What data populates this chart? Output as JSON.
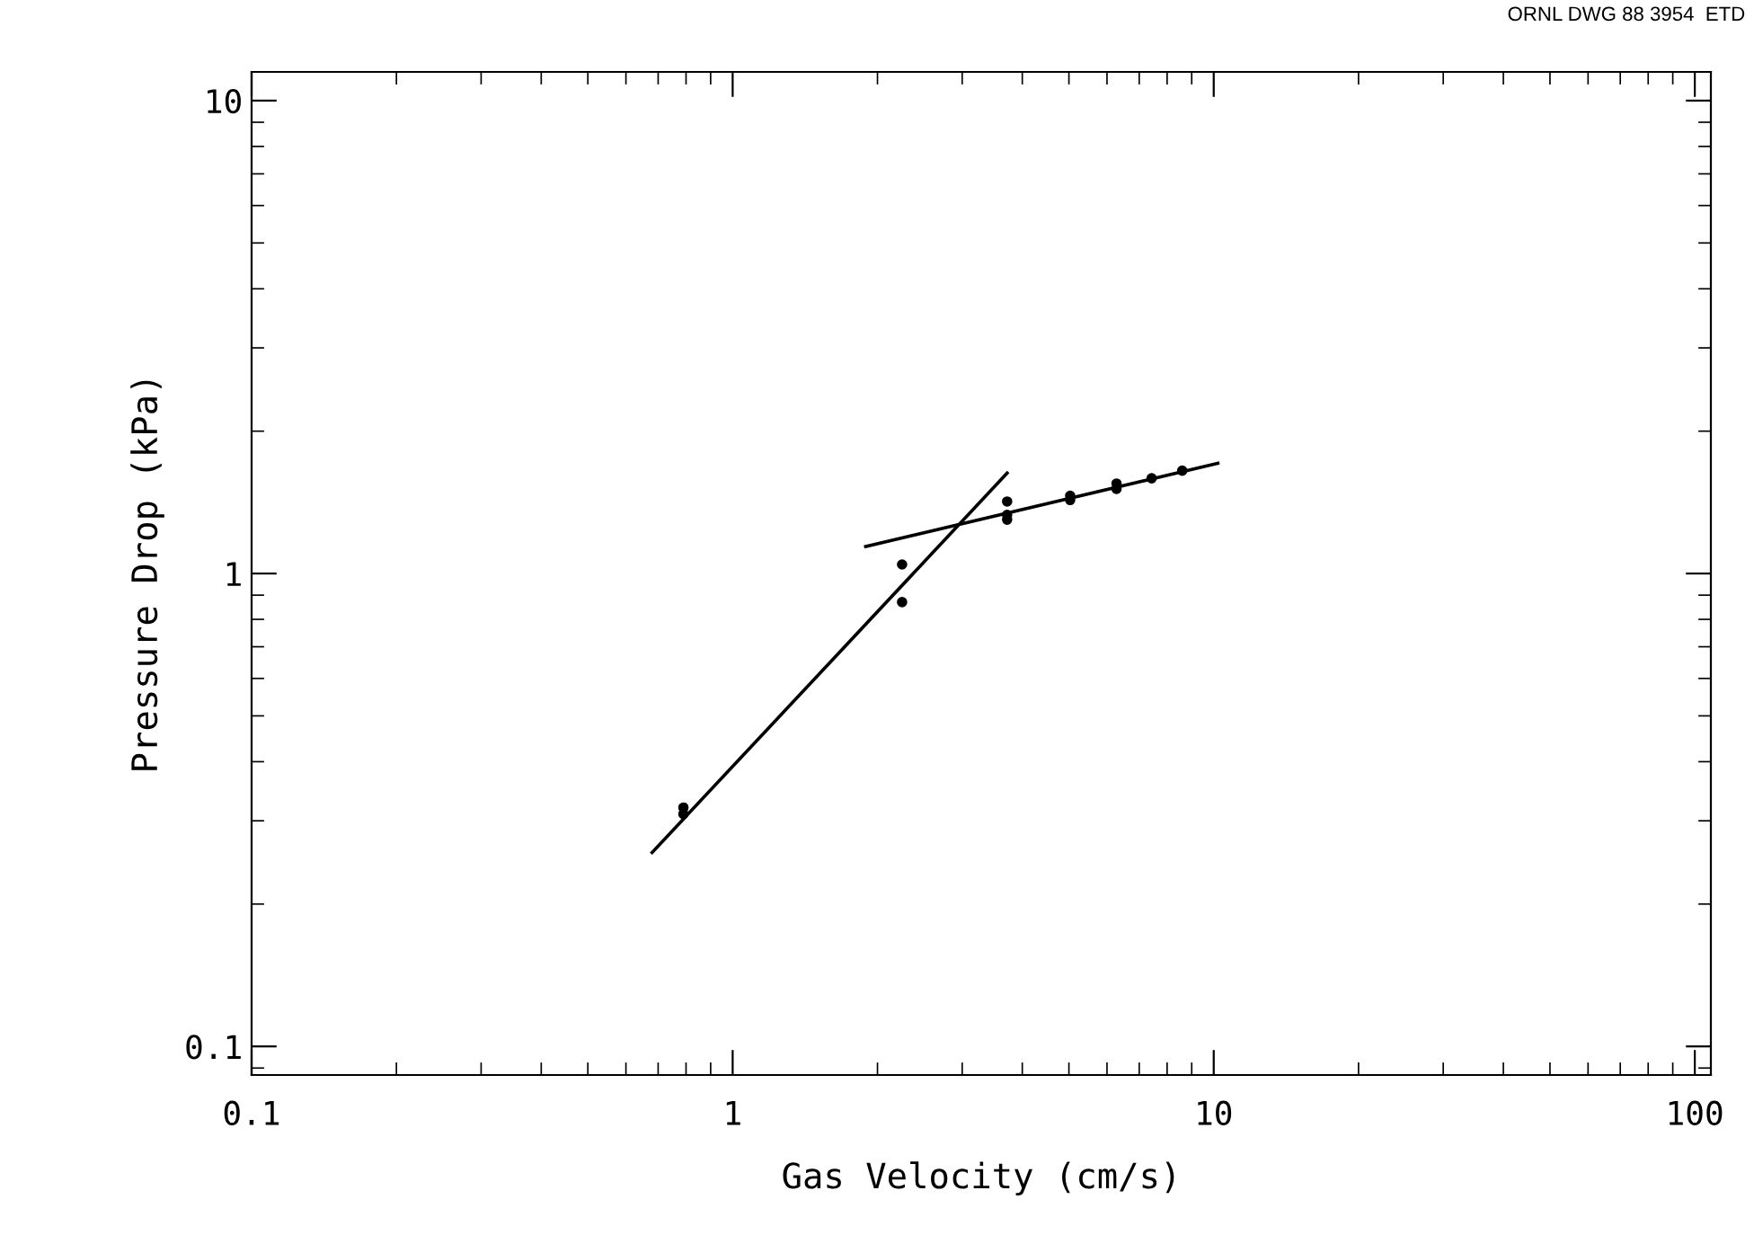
{
  "chart_data": {
    "type": "scatter",
    "xlabel": "Gas Velocity (cm/s)",
    "ylabel": "Pressure Drop (kPa)",
    "log": "xy",
    "xlim": [
      0.1,
      108
    ],
    "ylim": [
      0.087,
      11.5
    ],
    "xticks": [
      0.1,
      1,
      10,
      100
    ],
    "yticks": [
      0.1,
      1,
      10
    ],
    "grid": false,
    "legend": false,
    "annotations": [
      "ORNL DWG 88 3954  ETD"
    ],
    "series": [
      {
        "color": "#000000",
        "marker": "circle",
        "x": [
          0.79,
          0.79,
          2.25,
          2.25,
          3.72,
          3.72,
          3.72,
          5.03,
          5.03,
          6.28,
          6.28,
          7.43,
          8.6
        ],
        "values": [
          0.31,
          0.32,
          1.045,
          0.87,
          1.42,
          1.3,
          1.33,
          1.43,
          1.46,
          1.51,
          1.55,
          1.59,
          1.65
        ]
      },
      {
        "type": "line",
        "color": "#000000",
        "line_style": "solid",
        "x": [
          0.68,
          3.72
        ],
        "values": [
          0.257,
          1.63
        ]
      },
      {
        "type": "line",
        "color": "#000000",
        "line_style": "solid",
        "x": [
          1.89,
          10.2
        ],
        "values": [
          1.14,
          1.71
        ]
      }
    ]
  }
}
